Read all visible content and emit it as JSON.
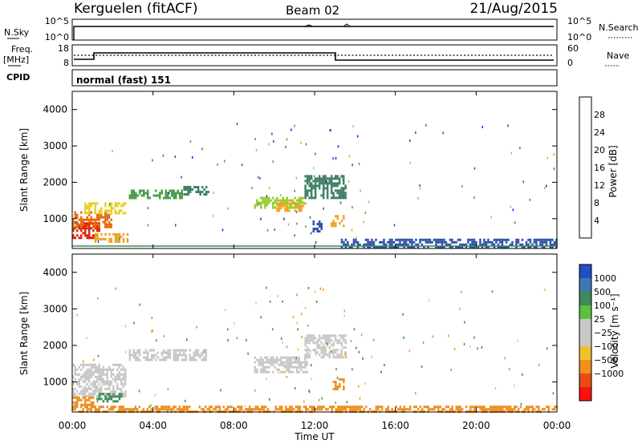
{
  "header": {
    "station": "Kerguelen (fitACF)",
    "beam": "Beam 02",
    "date": "21/Aug/2015"
  },
  "top_panels": {
    "nsky_label": "N.Sky",
    "nsky_ticks": [
      "10^5",
      "10^0"
    ],
    "nsearch_label": "N.Search",
    "nsearch_ticks": [
      "10^5",
      "10^0"
    ],
    "freq_label": "Freq.",
    "freq_unit": "[MHz]",
    "freq_ticks": [
      "18",
      "8"
    ],
    "nave_label": "Nave",
    "nave_ticks": [
      "60",
      "0"
    ],
    "cpid_label": "CPID",
    "cpid_text": "normal (fast) 151"
  },
  "colors": {
    "power_scale": [
      "#1a1aff",
      "#2e4fa8",
      "#3e7e62",
      "#4fa04a",
      "#9acd32",
      "#e8d020",
      "#f0a020",
      "#e86a10",
      "#e02000",
      "#ff0000"
    ],
    "velocity_scale": [
      "#2050c8",
      "#3a78b4",
      "#3e8a58",
      "#5cc040",
      "#c8c8c8",
      "#c8c8c8",
      "#f0c030",
      "#f09020",
      "#e84c10",
      "#ff1010"
    ]
  },
  "chart_data": [
    {
      "type": "heatmap",
      "name": "power",
      "xlabel": "",
      "ylabel": "Slant Range [km]",
      "x_range": [
        0,
        24
      ],
      "ylim": [
        180,
        4500
      ],
      "yticks": [
        "1000",
        "2000",
        "3000",
        "4000"
      ],
      "colorbar_label": "Power [dB]",
      "colorbar_ticks": [
        "4",
        "8",
        "12",
        "16",
        "20",
        "24",
        "28"
      ],
      "colorbar_range": [
        0,
        32
      ],
      "patches": [
        {
          "x": [
            0.0,
            1.3
          ],
          "y": [
            500,
            900
          ],
          "value": 28
        },
        {
          "x": [
            0.0,
            1.9
          ],
          "y": [
            800,
            1200
          ],
          "value": 24
        },
        {
          "x": [
            0.6,
            2.6
          ],
          "y": [
            1150,
            1450
          ],
          "value": 18
        },
        {
          "x": [
            1.1,
            2.7
          ],
          "y": [
            350,
            600
          ],
          "value": 22
        },
        {
          "x": [
            2.8,
            5.4
          ],
          "y": [
            1550,
            1800
          ],
          "value": 10
        },
        {
          "x": [
            5.5,
            6.7
          ],
          "y": [
            1700,
            1900
          ],
          "value": 8
        },
        {
          "x": [
            9.0,
            11.4
          ],
          "y": [
            1300,
            1600
          ],
          "value": 14
        },
        {
          "x": [
            10.0,
            11.5
          ],
          "y": [
            1250,
            1450
          ],
          "value": 20
        },
        {
          "x": [
            11.5,
            13.5
          ],
          "y": [
            1600,
            2200
          ],
          "value": 8
        },
        {
          "x": [
            12.8,
            13.4
          ],
          "y": [
            800,
            1100
          ],
          "value": 22
        },
        {
          "x": [
            11.9,
            12.3
          ],
          "y": [
            650,
            950
          ],
          "value": 6
        },
        {
          "x": [
            13.3,
            24.0
          ],
          "y": [
            200,
            450
          ],
          "value": 6
        }
      ]
    },
    {
      "type": "heatmap",
      "name": "velocity",
      "xlabel": "Time UT",
      "ylabel": "Slant Range [km]",
      "x_range": [
        0,
        24
      ],
      "ylim": [
        180,
        4500
      ],
      "xticks": [
        "00:00",
        "04:00",
        "08:00",
        "12:00",
        "16:00",
        "20:00",
        "00:00"
      ],
      "yticks": [
        "1000",
        "2000",
        "3000",
        "4000"
      ],
      "colorbar_label": "Velocity [m s⁻¹]",
      "colorbar_ticks": [
        "1000",
        "500",
        "100",
        "25",
        "−25",
        "−100",
        "−500",
        "−1000"
      ],
      "patches": [
        {
          "x": [
            0.0,
            2.6
          ],
          "y": [
            600,
            1500
          ],
          "value": 0
        },
        {
          "x": [
            0.0,
            1.0
          ],
          "y": [
            350,
            600
          ],
          "value": -100
        },
        {
          "x": [
            1.2,
            2.4
          ],
          "y": [
            500,
            700
          ],
          "value": 100
        },
        {
          "x": [
            2.8,
            6.6
          ],
          "y": [
            1600,
            1900
          ],
          "value": 0
        },
        {
          "x": [
            9.0,
            11.6
          ],
          "y": [
            1300,
            1700
          ],
          "value": 0
        },
        {
          "x": [
            11.5,
            13.5
          ],
          "y": [
            1700,
            2300
          ],
          "value": 0
        },
        {
          "x": [
            12.9,
            13.4
          ],
          "y": [
            800,
            1100
          ],
          "value": -300
        },
        {
          "x": [
            0.0,
            24.0
          ],
          "y": [
            200,
            350
          ],
          "value": -80
        }
      ]
    }
  ]
}
